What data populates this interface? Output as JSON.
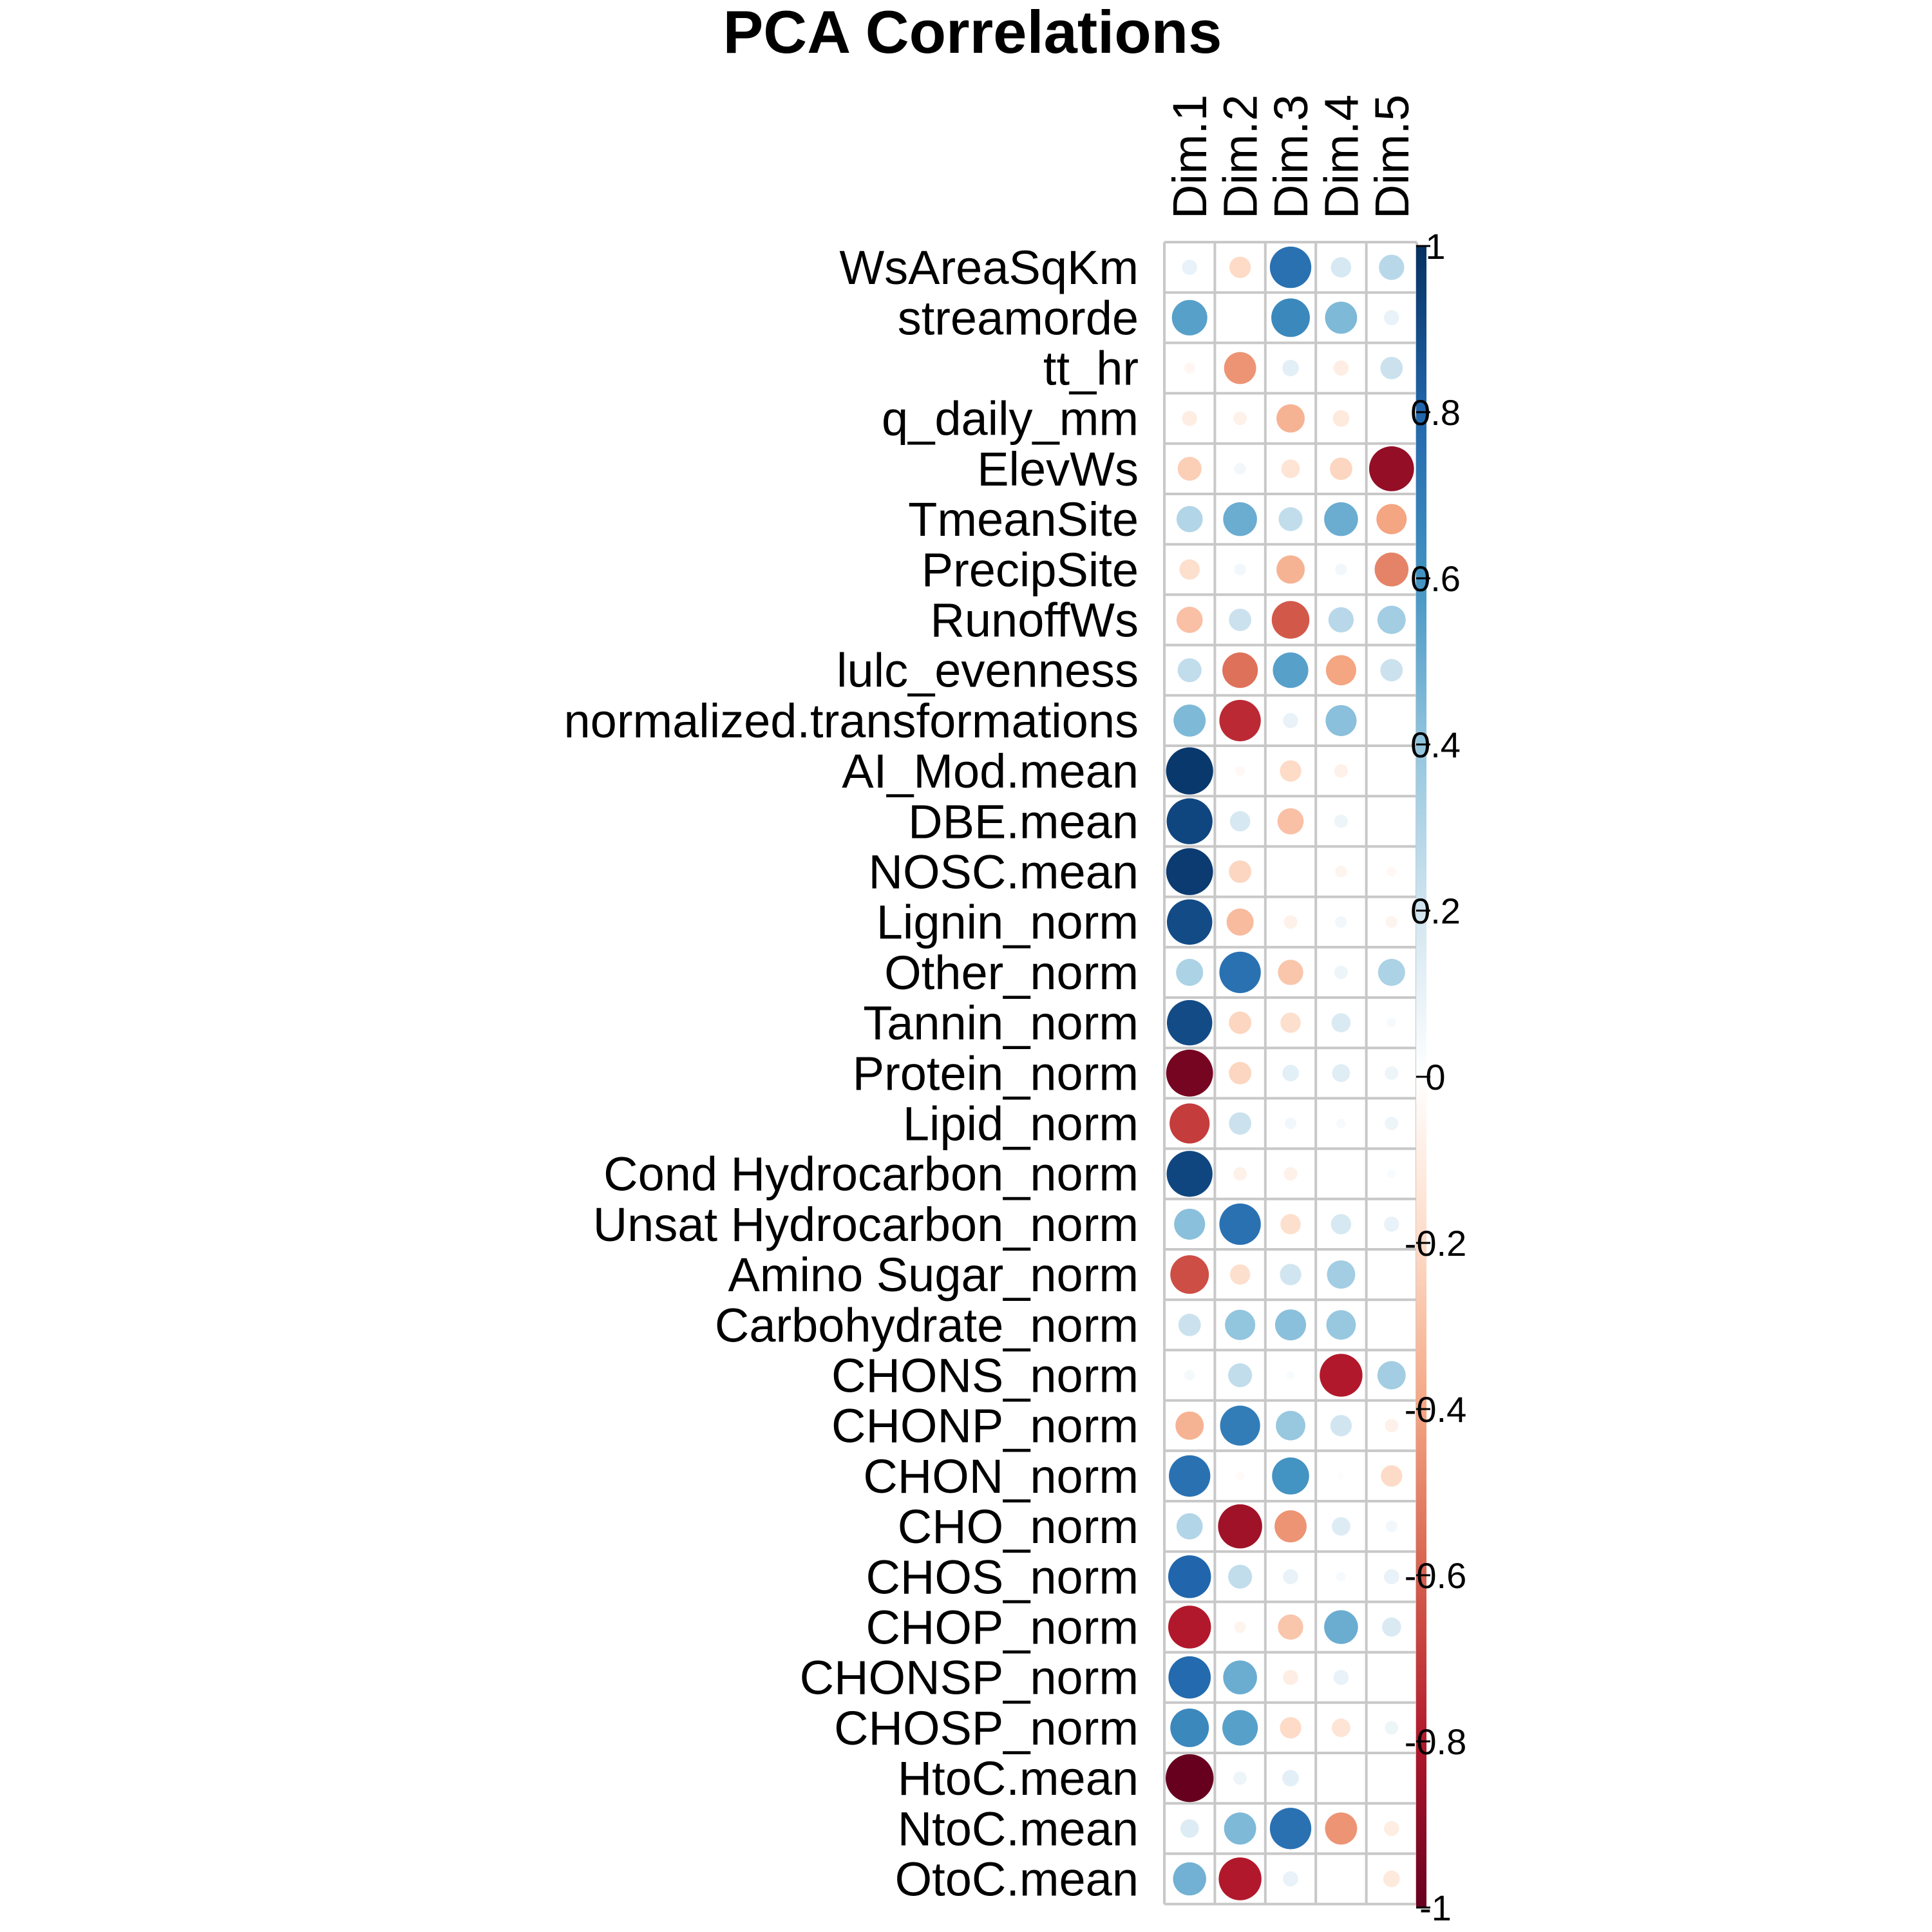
{
  "chart_data": {
    "type": "heatmap",
    "title": "PCA Correlations",
    "columns": [
      "Dim.1",
      "Dim.2",
      "Dim.3",
      "Dim.4",
      "Dim.5"
    ],
    "rows": [
      "WsAreaSqKm",
      "streamorde",
      "tt_hr",
      "q_daily_mm",
      "ElevWs",
      "TmeanSite",
      "PrecipSite",
      "RunoffWs",
      "lulc_evenness",
      "normalized.transformations",
      "AI_Mod.mean",
      "DBE.mean",
      "NOSC.mean",
      "Lignin_norm",
      "Other_norm",
      "Tannin_norm",
      "Protein_norm",
      "Lipid_norm",
      "Cond Hydrocarbon_norm",
      "Unsat Hydrocarbon_norm",
      "Amino Sugar_norm",
      "Carbohydrate_norm",
      "CHONS_norm",
      "CHONP_norm",
      "CHON_norm",
      "CHO_norm",
      "CHOS_norm",
      "CHOP_norm",
      "CHONSP_norm",
      "CHOSP_norm",
      "HtoC.mean",
      "NtoC.mean",
      "OtoC.mean"
    ],
    "values": [
      [
        0.1,
        -0.2,
        0.75,
        0.18,
        0.28
      ],
      [
        0.55,
        0.0,
        0.65,
        0.45,
        0.1
      ],
      [
        -0.05,
        -0.45,
        0.12,
        -0.1,
        0.22
      ],
      [
        -0.1,
        -0.08,
        -0.35,
        -0.12,
        0.0
      ],
      [
        -0.25,
        0.06,
        -0.15,
        -0.22,
        -0.88
      ],
      [
        0.3,
        0.5,
        0.25,
        0.5,
        -0.4
      ],
      [
        -0.18,
        0.06,
        -0.35,
        0.06,
        -0.5
      ],
      [
        -0.3,
        0.22,
        -0.62,
        0.28,
        0.35
      ],
      [
        0.25,
        -0.55,
        0.55,
        -0.4,
        0.22
      ],
      [
        0.45,
        -0.75,
        0.1,
        0.42,
        0.0
      ],
      [
        0.97,
        -0.04,
        -0.2,
        -0.08,
        0.0
      ],
      [
        0.92,
        0.18,
        -0.3,
        0.08,
        0.0
      ],
      [
        0.96,
        -0.22,
        0.0,
        -0.06,
        -0.04
      ],
      [
        0.9,
        -0.32,
        -0.08,
        0.06,
        -0.06
      ],
      [
        0.32,
        0.75,
        -0.28,
        0.08,
        0.32
      ],
      [
        0.9,
        -0.22,
        -0.18,
        0.16,
        0.04
      ],
      [
        -0.96,
        -0.22,
        0.12,
        0.14,
        0.08
      ],
      [
        -0.7,
        0.22,
        0.06,
        0.04,
        0.08
      ],
      [
        0.92,
        -0.08,
        -0.08,
        0.0,
        0.03
      ],
      [
        0.42,
        0.75,
        -0.18,
        0.18,
        0.1
      ],
      [
        -0.65,
        -0.18,
        0.2,
        0.35,
        0.0
      ],
      [
        0.22,
        0.4,
        0.42,
        0.38,
        0.0
      ],
      [
        0.05,
        0.25,
        0.03,
        -0.8,
        0.35
      ],
      [
        -0.35,
        0.7,
        0.38,
        0.2,
        -0.08
      ],
      [
        0.75,
        -0.03,
        0.6,
        0.02,
        -0.2
      ],
      [
        0.3,
        -0.85,
        -0.45,
        0.15,
        0.06
      ],
      [
        0.8,
        0.25,
        0.1,
        0.04,
        0.1
      ],
      [
        -0.8,
        -0.06,
        -0.28,
        0.5,
        0.16
      ],
      [
        0.78,
        0.5,
        -0.1,
        0.1,
        0.0
      ],
      [
        0.65,
        0.55,
        -0.2,
        -0.15,
        0.08
      ],
      [
        -1.0,
        0.08,
        0.12,
        0.0,
        0.0
      ],
      [
        0.15,
        0.45,
        0.75,
        -0.45,
        -0.1
      ],
      [
        0.48,
        -0.8,
        0.1,
        0.0,
        -0.12
      ]
    ],
    "value_range": [
      -1,
      1
    ],
    "shape": "circle",
    "grid": true,
    "legend": {
      "type": "colorbar",
      "placement": "right",
      "ticks": [
        "1",
        "0.8",
        "0.6",
        "0.4",
        "0.2",
        "0",
        "-0.2",
        "-0.4",
        "-0.6",
        "-0.8",
        "-1"
      ]
    },
    "colormap": [
      "#67001F",
      "#B2182B",
      "#D6604D",
      "#F4A582",
      "#FDDBC7",
      "#FFFFFF",
      "#D1E5F0",
      "#92C5DE",
      "#4393C3",
      "#2166AC",
      "#053061"
    ]
  }
}
